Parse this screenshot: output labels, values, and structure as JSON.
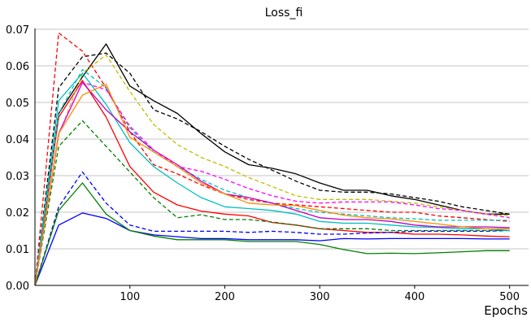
{
  "chart_data": {
    "type": "line",
    "title": "Loss_fi",
    "xlabel": "Epochs",
    "ylabel": "",
    "xlim": [
      0,
      520
    ],
    "ylim": [
      0,
      0.07
    ],
    "grid": "horizontal",
    "x_ticks": [
      100,
      200,
      300,
      400,
      500
    ],
    "x_tick_labels": [
      "100",
      "200",
      "300",
      "400",
      "500"
    ],
    "y_ticks": [
      0.0,
      0.01,
      0.02,
      0.03,
      0.04,
      0.05,
      0.06,
      0.07
    ],
    "y_tick_labels": [
      "0.00",
      "0.01",
      "0.02",
      "0.03",
      "0.04",
      "0.05",
      "0.06",
      "0.07"
    ],
    "x": [
      0,
      25,
      50,
      75,
      100,
      125,
      150,
      175,
      200,
      225,
      250,
      275,
      300,
      325,
      350,
      375,
      400,
      425,
      450,
      475,
      500
    ],
    "series": [
      {
        "color": "#000000",
        "dash": "solid",
        "values": [
          0,
          0.047,
          0.057,
          0.066,
          0.0545,
          0.0505,
          0.047,
          0.0415,
          0.0365,
          0.033,
          0.032,
          0.0305,
          0.028,
          0.026,
          0.026,
          0.0245,
          0.0235,
          0.022,
          0.0205,
          0.0195,
          0.0195
        ]
      },
      {
        "color": "#000000",
        "dash": "dashed",
        "values": [
          0,
          0.054,
          0.0625,
          0.0635,
          0.058,
          0.048,
          0.0455,
          0.042,
          0.038,
          0.0345,
          0.0315,
          0.0285,
          0.026,
          0.0255,
          0.0255,
          0.025,
          0.024,
          0.023,
          0.0215,
          0.0205,
          0.0195
        ]
      },
      {
        "color": "#ff0000",
        "dash": "dashed",
        "values": [
          0,
          0.069,
          0.064,
          0.054,
          0.042,
          0.033,
          0.0305,
          0.0275,
          0.025,
          0.0235,
          0.0225,
          0.022,
          0.0215,
          0.021,
          0.0205,
          0.02,
          0.02,
          0.019,
          0.0185,
          0.018,
          0.0175
        ]
      },
      {
        "color": "#ff0000",
        "dash": "solid",
        "values": [
          0,
          0.046,
          0.056,
          0.046,
          0.0325,
          0.0255,
          0.022,
          0.0203,
          0.0195,
          0.019,
          0.0172,
          0.0165,
          0.0155,
          0.015,
          0.0145,
          0.0145,
          0.014,
          0.014,
          0.0138,
          0.0135,
          0.0133
        ]
      },
      {
        "color": "#0000ff",
        "dash": "solid",
        "values": [
          0,
          0.0165,
          0.0198,
          0.0183,
          0.015,
          0.0138,
          0.0133,
          0.0128,
          0.0128,
          0.0125,
          0.0125,
          0.0125,
          0.0122,
          0.0128,
          0.0127,
          0.0128,
          0.0128,
          0.0128,
          0.0128,
          0.0127,
          0.0127
        ]
      },
      {
        "color": "#0000ff",
        "dash": "dashed",
        "values": [
          0,
          0.0215,
          0.031,
          0.0225,
          0.0165,
          0.0148,
          0.0148,
          0.0148,
          0.0148,
          0.0145,
          0.0148,
          0.0145,
          0.014,
          0.014,
          0.0143,
          0.0145,
          0.0148,
          0.0148,
          0.0148,
          0.0148,
          0.015
        ]
      },
      {
        "color": "#008000",
        "dash": "solid",
        "values": [
          0,
          0.0205,
          0.028,
          0.0195,
          0.015,
          0.0135,
          0.0125,
          0.0125,
          0.0125,
          0.012,
          0.012,
          0.012,
          0.0112,
          0.0098,
          0.0087,
          0.0088,
          0.0087,
          0.0089,
          0.0092,
          0.0095,
          0.0095
        ]
      },
      {
        "color": "#008000",
        "dash": "dashed",
        "values": [
          0,
          0.038,
          0.045,
          0.038,
          0.031,
          0.024,
          0.0185,
          0.0193,
          0.018,
          0.018,
          0.0173,
          0.0165,
          0.0155,
          0.0155,
          0.0155,
          0.015,
          0.015,
          0.015,
          0.015,
          0.015,
          0.015
        ]
      },
      {
        "color": "#bfbf00",
        "dash": "dashed",
        "values": [
          0,
          0.041,
          0.058,
          0.063,
          0.053,
          0.044,
          0.0385,
          0.035,
          0.0325,
          0.0295,
          0.027,
          0.0245,
          0.0235,
          0.0235,
          0.0235,
          0.023,
          0.0225,
          0.0215,
          0.0205,
          0.0195,
          0.019
        ]
      },
      {
        "color": "#00bfbf",
        "dash": "solid",
        "values": [
          0,
          0.0505,
          0.058,
          0.0495,
          0.039,
          0.0325,
          0.028,
          0.024,
          0.0215,
          0.021,
          0.0205,
          0.0195,
          0.0175,
          0.017,
          0.017,
          0.0165,
          0.016,
          0.0158,
          0.0155,
          0.0155,
          0.015
        ]
      },
      {
        "color": "#00bfbf",
        "dash": "dashed",
        "values": [
          0,
          0.047,
          0.059,
          0.054,
          0.043,
          0.0365,
          0.0325,
          0.029,
          0.026,
          0.024,
          0.0225,
          0.021,
          0.02,
          0.0195,
          0.019,
          0.0185,
          0.0182,
          0.0178,
          0.0178,
          0.0178,
          0.0178
        ]
      },
      {
        "color": "#bf00bf",
        "dash": "solid",
        "values": [
          0,
          0.0415,
          0.0555,
          0.048,
          0.042,
          0.037,
          0.033,
          0.0285,
          0.025,
          0.024,
          0.0225,
          0.0205,
          0.0185,
          0.018,
          0.018,
          0.0175,
          0.0165,
          0.016,
          0.016,
          0.016,
          0.0158
        ]
      },
      {
        "color": "#ff00ff",
        "dash": "dashed",
        "values": [
          0,
          0.0415,
          0.0555,
          0.0535,
          0.0435,
          0.037,
          0.0325,
          0.0312,
          0.029,
          0.0265,
          0.0245,
          0.023,
          0.0225,
          0.0228,
          0.0228,
          0.0228,
          0.022,
          0.021,
          0.0205,
          0.0195,
          0.0185
        ]
      },
      {
        "color": "#ff8c00",
        "dash": "solid",
        "values": [
          0,
          0.0415,
          0.052,
          0.055,
          0.0405,
          0.0365,
          0.0325,
          0.028,
          0.025,
          0.0225,
          0.022,
          0.0218,
          0.0205,
          0.0192,
          0.0185,
          0.0182,
          0.0175,
          0.0168,
          0.016,
          0.0155,
          0.0155
        ]
      }
    ]
  }
}
